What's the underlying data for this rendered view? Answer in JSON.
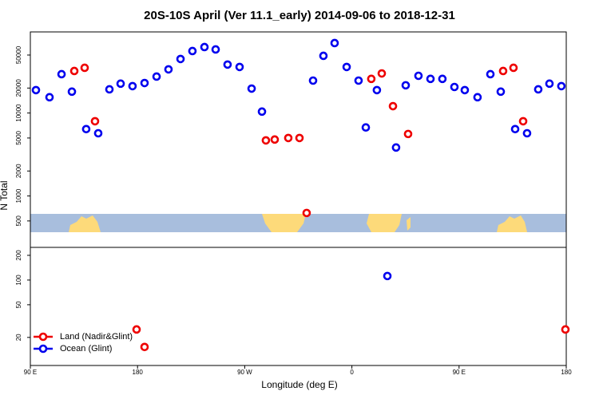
{
  "chart_data": [
    {
      "type": "scatter",
      "title": "20S-10S April (Ver 11.1_early)   2014-09-06 to 2018-12-31",
      "ylabel": "N Total",
      "log_y": true,
      "xlim": [
        90,
        540
      ],
      "ylim": [
        240,
        95000
      ],
      "yticks": [
        500,
        1000,
        2000,
        5000,
        10000,
        20000,
        50000
      ],
      "series": [
        {
          "color": "#ee0000",
          "x": [
            126.9,
            135.6,
            144.3,
            287.8,
            295.2,
            306.6,
            316.0,
            322.0,
            376.3,
            385.1,
            394.5,
            407.2,
            487.0,
            495.7,
            503.8
          ],
          "values": [
            32100,
            35100,
            7960,
            4680,
            4790,
            5000,
            5000,
            624,
            25800,
            30000,
            12100,
            5590,
            32100,
            35100,
            7960
          ]
        },
        {
          "color": "#0000ee",
          "x": [
            94.7,
            106.1,
            116.2,
            124.9,
            136.9,
            147.0,
            156.4,
            165.8,
            175.8,
            185.9,
            196.0,
            206.0,
            216.1,
            226.1,
            236.2,
            245.6,
            255.6,
            265.7,
            275.8,
            284.5,
            327.4,
            336.1,
            345.5,
            355.6,
            365.6,
            371.7,
            381.0,
            397.1,
            405.2,
            415.9,
            426.0,
            436.0,
            446.1,
            454.8,
            465.5,
            476.3,
            485.0,
            497.1,
            507.1,
            516.5,
            525.9,
            535.9
          ],
          "values": [
            18900,
            15500,
            29400,
            18100,
            6400,
            5700,
            19300,
            22600,
            21100,
            23000,
            27500,
            33600,
            44800,
            55900,
            62400,
            58400,
            38400,
            35900,
            19700,
            10400,
            24600,
            48900,
            69700,
            35900,
            24600,
            6700,
            18900,
            3840,
            21600,
            28100,
            25800,
            25800,
            20600,
            18900,
            15500,
            29400,
            18100,
            6400,
            5700,
            19300,
            22600,
            21100
          ]
        }
      ]
    },
    {
      "type": "scatter",
      "xlabel": "Longitude (deg E)",
      "log_y": true,
      "legend": "lower left",
      "xlim": [
        90,
        540
      ],
      "ylim": [
        9.1,
        250
      ],
      "xticks": [
        {
          "value": 90,
          "label": "90 E"
        },
        180,
        {
          "value": 270,
          "label": "90 W"
        },
        {
          "value": 360,
          "label": "0"
        },
        {
          "value": 450,
          "label": "90 E"
        },
        {
          "value": 540,
          "label": "180"
        }
      ],
      "yticks": [
        20,
        50,
        100,
        200
      ],
      "series": [
        {
          "name": "Land (Nadir&Glint)",
          "color": "#ee0000",
          "x": [
            179.2,
            185.9,
            539.3
          ],
          "values": [
            25,
            15.3,
            25
          ]
        },
        {
          "name": "Ocean (Glint)",
          "color": "#0000ee",
          "x": [
            389.8
          ],
          "values": [
            112
          ]
        }
      ]
    }
  ]
}
